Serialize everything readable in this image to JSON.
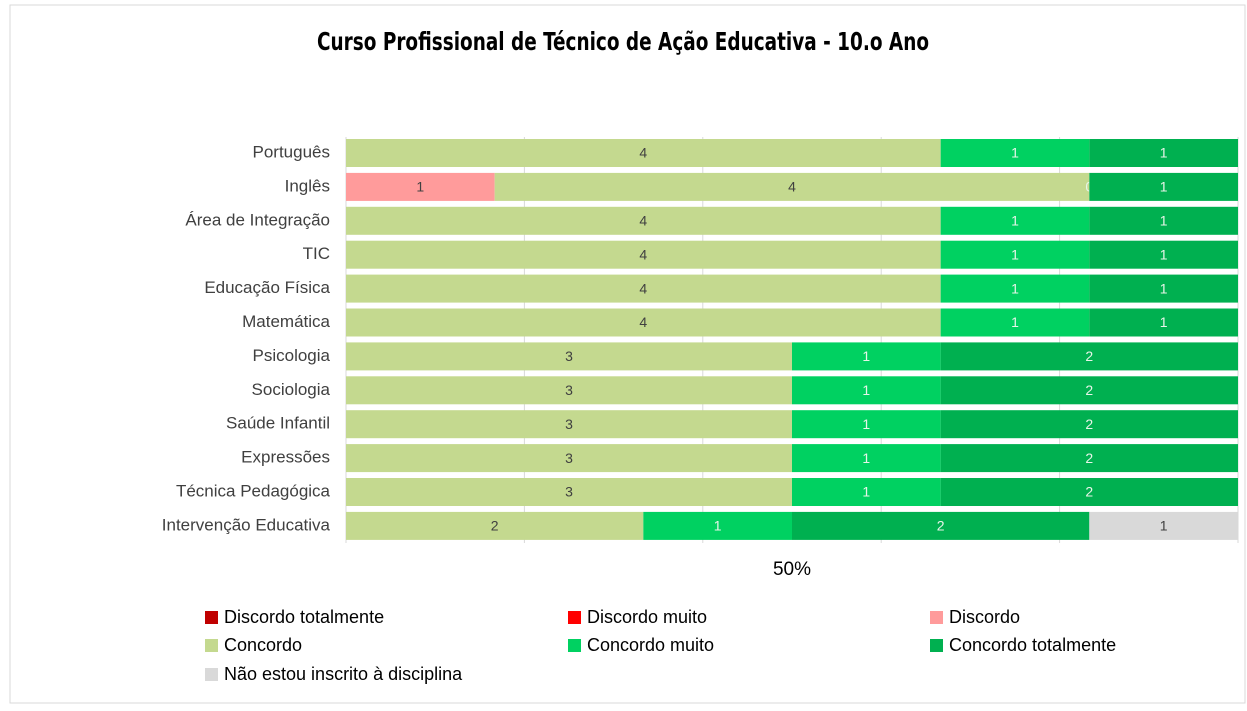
{
  "chart_data": {
    "type": "stacked_bar_100",
    "title": "Curso Profissional de Técnico de Ação Educativa - 10.o Ano",
    "categories": [
      "Português",
      "Inglês",
      "Área de Integração",
      "TIC",
      "Educação Física",
      "Matemática",
      "Psicologia",
      "Sociologia",
      "Saúde Infantil",
      "Expressões",
      "Técnica Pedagógica",
      "Intervenção Educativa"
    ],
    "series": [
      {
        "name": "Discordo totalmente",
        "color": "#c00000",
        "values": [
          null,
          null,
          null,
          null,
          null,
          null,
          null,
          null,
          null,
          null,
          null,
          null
        ]
      },
      {
        "name": "Discordo muito",
        "color": "#ff0000",
        "values": [
          null,
          null,
          null,
          null,
          null,
          null,
          null,
          null,
          null,
          null,
          null,
          null
        ]
      },
      {
        "name": "Discordo",
        "color": "#ff9b9b",
        "values": [
          null,
          1,
          null,
          null,
          null,
          null,
          null,
          null,
          null,
          null,
          null,
          null
        ]
      },
      {
        "name": "Concordo",
        "color": "#c4d98f",
        "values": [
          4,
          4,
          4,
          4,
          4,
          4,
          3,
          3,
          3,
          3,
          3,
          2
        ]
      },
      {
        "name": "Concordo muito",
        "color": "#00d161",
        "values": [
          1,
          0,
          1,
          1,
          1,
          1,
          1,
          1,
          1,
          1,
          1,
          1
        ]
      },
      {
        "name": "Concordo totalmente",
        "color": "#00b050",
        "values": [
          1,
          1,
          1,
          1,
          1,
          1,
          2,
          2,
          2,
          2,
          2,
          2
        ]
      },
      {
        "name": "Não estou inscrito à disciplina",
        "color": "#d9d9d9",
        "values": [
          null,
          null,
          null,
          null,
          null,
          null,
          null,
          null,
          null,
          null,
          null,
          1
        ]
      }
    ],
    "xlim": [
      0,
      100
    ],
    "xticks": [
      {
        "value": 50,
        "label": "50%"
      }
    ],
    "xgrid": [
      0,
      20,
      40,
      60,
      80,
      100
    ],
    "grid": true,
    "legend": "bottom"
  }
}
